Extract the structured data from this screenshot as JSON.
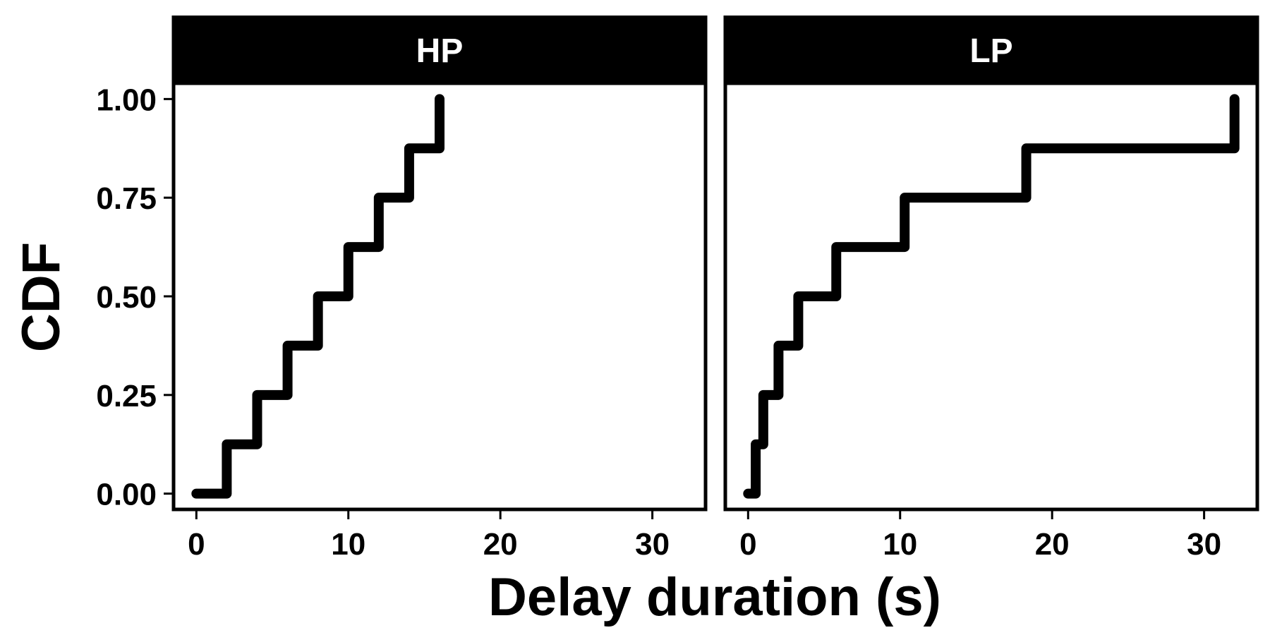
{
  "chart_data": {
    "type": "line",
    "subtype": "step",
    "xlabel": "Delay duration (s)",
    "ylabel": "CDF",
    "xlim": [
      -1.5,
      33.5
    ],
    "ylim": [
      -0.04,
      1.04
    ],
    "x_ticks": [
      0,
      10,
      20,
      30
    ],
    "y_ticks": [
      "0.00",
      "0.25",
      "0.50",
      "0.75",
      "1.00"
    ],
    "grid": false,
    "legend": "none",
    "line_color": "#000000",
    "panels": [
      {
        "name": "HP",
        "series": [
          {
            "x": [
              0,
              2,
              4,
              6,
              8,
              10,
              12,
              14,
              16
            ],
            "y": [
              0.0,
              0.125,
              0.25,
              0.375,
              0.5,
              0.625,
              0.75,
              0.875,
              1.0
            ]
          }
        ]
      },
      {
        "name": "LP",
        "series": [
          {
            "x": [
              0,
              0.5,
              1,
              2,
              3.3,
              5.8,
              10.3,
              18.3,
              32
            ],
            "y": [
              0.0,
              0.125,
              0.25,
              0.375,
              0.5,
              0.625,
              0.75,
              0.875,
              1.0
            ]
          }
        ]
      }
    ]
  }
}
